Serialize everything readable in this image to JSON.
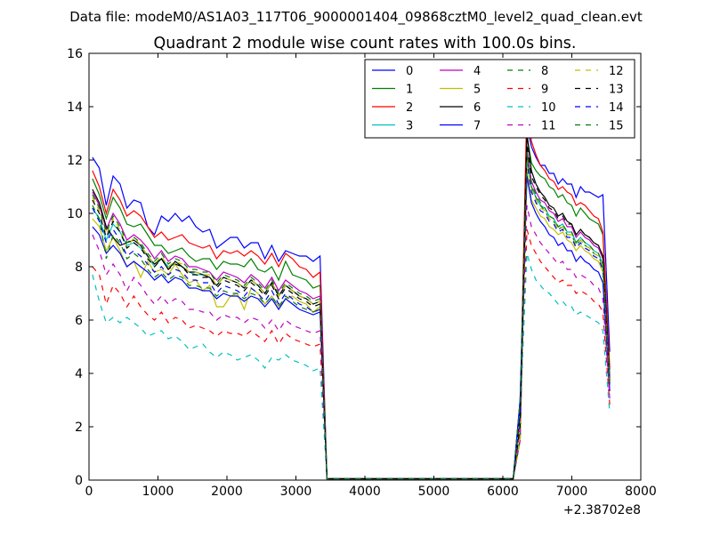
{
  "figure": {
    "suptitle": "Data file: modeM0/AS1A03_117T06_9000001404_09868cztM0_level2_quad_clean.evt"
  },
  "chart_data": {
    "type": "line",
    "title": "Quadrant 2 module wise count rates with 100.0s bins.",
    "xlabel": "",
    "ylabel": "",
    "x_offset_label": "+2.38702e8",
    "xlim": [
      0,
      8000
    ],
    "ylim": [
      0,
      16
    ],
    "xticks": [
      0,
      1000,
      2000,
      3000,
      4000,
      5000,
      6000,
      7000,
      8000
    ],
    "yticks": [
      0,
      2,
      4,
      6,
      8,
      10,
      12,
      14,
      16
    ],
    "grid": false,
    "legend": {
      "placement": "top-right",
      "columns": 4
    },
    "series": [
      {
        "name": "0",
        "color": "#0000ff",
        "dash": "solid",
        "seg1": [
          12.1,
          11.7,
          10.3,
          11.4,
          11.1,
          10.2,
          10.5,
          10.4,
          9.5,
          9.2,
          9.9,
          9.7,
          10.0,
          9.7,
          9.9,
          9.5,
          9.3,
          9.4,
          8.7,
          8.9,
          9.1,
          9.1,
          8.7,
          8.9,
          8.9,
          8.3,
          8.8,
          8.2,
          8.6,
          8.5,
          8.4,
          8.4,
          8.2,
          8.4
        ],
        "seg2": [
          13.3,
          12.5,
          12.1,
          11.8,
          11.8,
          11.5,
          11.5,
          11.1,
          11.3,
          11.1,
          11.1,
          10.6,
          11.0,
          10.8,
          10.8,
          10.7,
          10.6,
          10.7
        ]
      },
      {
        "name": "1",
        "color": "#008000",
        "dash": "solid",
        "seg1": [
          11.3,
          10.7,
          9.8,
          10.6,
          10.2,
          9.6,
          9.5,
          9.6,
          9.2,
          8.8,
          8.8,
          8.5,
          8.6,
          8.7,
          8.4,
          8.2,
          8.3,
          8.3,
          7.9,
          8.2,
          8.1,
          8.1,
          8.0,
          8.3,
          7.9,
          7.8,
          8.0,
          7.5,
          8.2,
          7.7,
          7.6,
          7.5,
          7.2,
          7.3
        ],
        "seg2": [
          12.9,
          11.9,
          11.6,
          11.4,
          11.3,
          11.0,
          10.9,
          10.6,
          10.7,
          10.4,
          10.3,
          9.9,
          10.2,
          10.0,
          9.8,
          9.7,
          9.6,
          9.2
        ]
      },
      {
        "name": "2",
        "color": "#ff0000",
        "dash": "solid",
        "seg1": [
          11.6,
          11.0,
          10.0,
          10.9,
          10.5,
          9.9,
          10.1,
          9.9,
          9.5,
          9.1,
          9.3,
          9.0,
          9.1,
          9.2,
          8.9,
          8.8,
          8.7,
          8.8,
          8.3,
          8.6,
          8.5,
          8.6,
          8.4,
          8.6,
          8.4,
          8.1,
          8.5,
          8.0,
          8.5,
          8.3,
          8.0,
          7.9,
          7.6,
          7.8
        ],
        "seg2": [
          14.3,
          12.7,
          12.2,
          11.8,
          11.6,
          11.3,
          11.2,
          10.9,
          11.0,
          10.8,
          10.7,
          10.3,
          10.4,
          10.3,
          10.1,
          9.9,
          9.8,
          9.3
        ]
      },
      {
        "name": "3",
        "color": "#00bfbf",
        "dash": "solid",
        "seg1": [
          10.2,
          9.8,
          9.0,
          9.6,
          9.3,
          8.8,
          8.9,
          8.7,
          8.4,
          8.0,
          8.3,
          8.0,
          8.1,
          8.0,
          7.8,
          7.7,
          7.7,
          7.6,
          7.3,
          7.6,
          7.5,
          7.4,
          7.2,
          7.5,
          7.3,
          7.0,
          7.4,
          6.9,
          7.3,
          7.1,
          6.9,
          6.8,
          6.6,
          6.7
        ],
        "seg2": [
          12.2,
          11.0,
          10.6,
          10.3,
          10.2,
          9.9,
          9.8,
          9.5,
          9.6,
          9.3,
          9.3,
          8.9,
          9.1,
          8.9,
          8.8,
          8.6,
          8.5,
          8.1
        ]
      },
      {
        "name": "4",
        "color": "#bf00bf",
        "dash": "solid",
        "seg1": [
          10.8,
          10.3,
          9.4,
          10.0,
          9.6,
          9.0,
          9.2,
          9.0,
          8.7,
          8.3,
          8.6,
          8.2,
          8.4,
          8.3,
          8.0,
          8.0,
          7.9,
          7.8,
          7.5,
          7.8,
          7.7,
          7.6,
          7.4,
          7.7,
          7.5,
          7.2,
          7.6,
          7.1,
          7.5,
          7.3,
          7.1,
          7.0,
          6.8,
          6.9
        ],
        "seg2": [
          12.4,
          11.2,
          10.8,
          10.5,
          10.4,
          10.1,
          10.0,
          9.7,
          9.8,
          9.5,
          9.5,
          9.1,
          9.3,
          9.1,
          9.0,
          8.8,
          8.7,
          8.3
        ]
      },
      {
        "name": "5",
        "color": "#bfbf00",
        "dash": "solid",
        "seg1": [
          9.8,
          9.5,
          8.6,
          9.1,
          8.6,
          8.0,
          8.2,
          7.6,
          8.2,
          7.8,
          7.9,
          7.7,
          8.1,
          7.7,
          7.4,
          7.5,
          7.1,
          7.3,
          6.5,
          6.5,
          6.9,
          7.0,
          6.4,
          7.2,
          7.0,
          6.6,
          6.9,
          6.5,
          6.8,
          6.9,
          6.7,
          6.6,
          6.3,
          6.5
        ],
        "seg2": [
          11.6,
          10.5,
          10.2,
          9.9,
          9.8,
          9.5,
          9.4,
          9.2,
          9.3,
          9.0,
          8.9,
          8.6,
          8.8,
          8.6,
          8.5,
          8.3,
          8.2,
          7.8
        ]
      },
      {
        "name": "6",
        "color": "#000000",
        "dash": "solid",
        "seg1": [
          10.9,
          10.4,
          9.5,
          9.1,
          8.8,
          8.9,
          9.0,
          8.8,
          8.4,
          8.1,
          8.3,
          7.9,
          8.2,
          8.0,
          7.8,
          7.8,
          7.7,
          7.6,
          7.3,
          7.6,
          7.5,
          7.4,
          7.2,
          7.5,
          7.3,
          7.0,
          7.4,
          6.9,
          7.3,
          7.1,
          6.9,
          6.8,
          6.6,
          6.7
        ],
        "seg2": [
          13.0,
          11.6,
          11.1,
          10.8,
          10.6,
          10.3,
          10.2,
          9.9,
          10.0,
          9.7,
          9.6,
          9.2,
          9.4,
          9.2,
          9.1,
          8.9,
          8.8,
          8.4
        ]
      },
      {
        "name": "7",
        "color": "#0000ff",
        "dash": "solid",
        "seg1": [
          9.5,
          9.2,
          8.5,
          8.8,
          8.5,
          8.0,
          8.2,
          8.0,
          7.8,
          7.5,
          7.7,
          7.4,
          7.6,
          7.5,
          7.2,
          7.2,
          7.1,
          7.1,
          6.8,
          7.0,
          6.9,
          6.9,
          6.7,
          6.9,
          6.8,
          6.5,
          6.8,
          6.4,
          6.8,
          6.6,
          6.4,
          6.3,
          6.2,
          6.3
        ],
        "seg2": [
          11.4,
          10.4,
          10.0,
          9.7,
          9.5,
          9.2,
          9.1,
          8.8,
          8.9,
          8.6,
          8.6,
          8.2,
          8.4,
          8.2,
          8.1,
          7.9,
          7.8,
          7.4
        ]
      },
      {
        "name": "8",
        "color": "#008000",
        "dash": "dashed",
        "seg1": [
          10.3,
          9.8,
          8.3,
          9.2,
          8.9,
          8.3,
          8.5,
          8.3,
          7.9,
          7.6,
          7.8,
          7.5,
          7.7,
          7.6,
          7.3,
          7.3,
          7.2,
          7.2,
          6.9,
          7.1,
          7.0,
          7.0,
          6.8,
          7.0,
          6.9,
          6.6,
          6.9,
          6.5,
          6.9,
          6.7,
          6.5,
          6.4,
          6.3,
          6.4
        ],
        "seg2": [
          12.1,
          11.0,
          10.6,
          10.3,
          10.1,
          9.8,
          9.7,
          9.4,
          9.5,
          9.2,
          9.2,
          8.8,
          9.0,
          8.8,
          8.7,
          8.5,
          8.4,
          8.0
        ]
      },
      {
        "name": "9",
        "color": "#ff0000",
        "dash": "dashed",
        "seg1": [
          8.0,
          7.7,
          6.6,
          7.3,
          7.0,
          6.5,
          6.9,
          6.5,
          6.2,
          6.0,
          6.3,
          5.9,
          6.1,
          6.0,
          5.7,
          5.8,
          5.7,
          5.6,
          5.4,
          5.6,
          5.5,
          5.5,
          5.4,
          5.6,
          5.4,
          5.2,
          5.6,
          5.1,
          5.5,
          5.3,
          5.2,
          5.1,
          5.0,
          5.1
        ],
        "seg2": [
          9.4,
          8.8,
          8.5,
          8.2,
          8.0,
          7.8,
          7.6,
          7.4,
          7.5,
          7.3,
          7.3,
          7.0,
          7.1,
          7.0,
          6.9,
          6.7,
          6.6,
          6.3
        ]
      },
      {
        "name": "10",
        "color": "#00bfbf",
        "dash": "dashed",
        "seg1": [
          7.7,
          6.7,
          5.9,
          6.1,
          5.9,
          6.1,
          5.9,
          5.7,
          5.4,
          5.5,
          5.6,
          5.3,
          5.4,
          5.2,
          4.9,
          5.0,
          5.1,
          4.8,
          4.6,
          4.8,
          4.7,
          4.5,
          4.6,
          4.7,
          4.5,
          4.2,
          4.6,
          4.5,
          4.7,
          4.5,
          4.4,
          4.3,
          4.1,
          4.2
        ],
        "seg2": [
          8.5,
          7.9,
          7.5,
          7.3,
          7.1,
          7.0,
          6.8,
          6.6,
          6.7,
          6.5,
          6.5,
          6.2,
          6.3,
          6.2,
          6.1,
          6.0,
          5.9,
          5.6
        ]
      },
      {
        "name": "11",
        "color": "#bf00bf",
        "dash": "dashed",
        "seg1": [
          9.2,
          8.6,
          7.7,
          8.1,
          7.7,
          7.1,
          7.6,
          7.3,
          6.9,
          6.6,
          6.9,
          6.6,
          6.8,
          6.7,
          6.4,
          6.4,
          6.3,
          6.3,
          6.0,
          6.2,
          6.1,
          6.1,
          5.9,
          6.1,
          6.0,
          5.7,
          6.0,
          5.6,
          6.0,
          5.8,
          5.7,
          5.6,
          5.5,
          5.6
        ],
        "seg2": [
          10.3,
          9.5,
          9.2,
          8.9,
          8.7,
          8.5,
          8.3,
          8.1,
          8.2,
          7.9,
          7.9,
          7.6,
          7.7,
          7.6,
          7.5,
          7.3,
          7.2,
          6.8
        ]
      },
      {
        "name": "12",
        "color": "#bfbf00",
        "dash": "dashed",
        "seg1": [
          10.6,
          10.1,
          9.2,
          9.8,
          9.4,
          8.7,
          9.1,
          8.8,
          8.4,
          8.1,
          8.4,
          8.0,
          8.2,
          8.1,
          7.8,
          7.8,
          7.7,
          7.7,
          7.3,
          7.6,
          7.5,
          7.4,
          7.2,
          7.5,
          7.3,
          7.0,
          7.4,
          6.9,
          7.3,
          7.1,
          6.9,
          6.8,
          6.6,
          6.7
        ],
        "seg2": [
          12.0,
          10.9,
          10.5,
          10.2,
          10.1,
          9.8,
          9.7,
          9.4,
          9.5,
          9.2,
          9.2,
          8.8,
          9.0,
          8.8,
          8.7,
          8.5,
          8.4,
          8.0
        ]
      },
      {
        "name": "13",
        "color": "#000000",
        "dash": "dashed",
        "seg1": [
          10.5,
          10.0,
          9.1,
          9.7,
          9.3,
          8.7,
          8.9,
          8.7,
          8.3,
          8.0,
          8.3,
          7.9,
          8.1,
          8.0,
          7.7,
          7.7,
          7.6,
          7.6,
          7.2,
          7.5,
          7.4,
          7.3,
          7.1,
          7.4,
          7.2,
          6.9,
          7.3,
          6.8,
          7.2,
          7.0,
          6.8,
          6.7,
          6.5,
          6.6
        ],
        "seg2": [
          12.6,
          11.4,
          11.0,
          10.7,
          10.5,
          10.2,
          10.1,
          9.8,
          9.9,
          9.6,
          9.6,
          9.2,
          9.4,
          9.2,
          9.1,
          8.9,
          8.8,
          8.4
        ]
      },
      {
        "name": "14",
        "color": "#0000ff",
        "dash": "dashed",
        "seg1": [
          10.2,
          9.7,
          8.9,
          9.4,
          9.0,
          8.4,
          8.6,
          8.4,
          8.1,
          7.8,
          8.0,
          7.7,
          7.9,
          7.8,
          7.5,
          7.5,
          7.4,
          7.4,
          7.0,
          7.3,
          7.2,
          7.1,
          6.9,
          7.2,
          7.0,
          6.7,
          7.1,
          6.6,
          7.0,
          6.8,
          6.6,
          6.5,
          6.3,
          6.4
        ],
        "seg2": [
          11.9,
          10.8,
          10.4,
          10.1,
          10.0,
          9.7,
          9.6,
          9.3,
          9.4,
          9.1,
          9.1,
          8.7,
          8.9,
          8.7,
          8.6,
          8.4,
          8.3,
          7.9
        ]
      },
      {
        "name": "15",
        "color": "#008000",
        "dash": "dashed",
        "seg1": [
          10.7,
          10.2,
          9.3,
          9.9,
          9.5,
          8.9,
          9.1,
          8.9,
          8.5,
          8.2,
          8.5,
          8.1,
          8.3,
          8.2,
          7.9,
          7.9,
          7.8,
          7.8,
          7.4,
          7.7,
          7.6,
          7.5,
          7.3,
          7.6,
          7.4,
          7.1,
          7.5,
          7.0,
          7.4,
          7.2,
          7.0,
          6.9,
          6.7,
          6.8
        ],
        "seg2": [
          12.3,
          11.1,
          10.7,
          10.4,
          10.2,
          9.9,
          9.8,
          9.5,
          9.6,
          9.3,
          9.3,
          8.9,
          9.1,
          8.9,
          8.8,
          8.6,
          8.5,
          8.1
        ]
      }
    ],
    "segment_layout": {
      "seg1_start": 50,
      "step": 100,
      "seg1_end_value_x": 3450,
      "seg1_end_value": 0.05,
      "gap_until": 6150,
      "seg2_start": 6250,
      "seg2_rise_start": 6350,
      "seg2_tail_x": 7550,
      "seg2_tail_values_index": "last"
    }
  }
}
